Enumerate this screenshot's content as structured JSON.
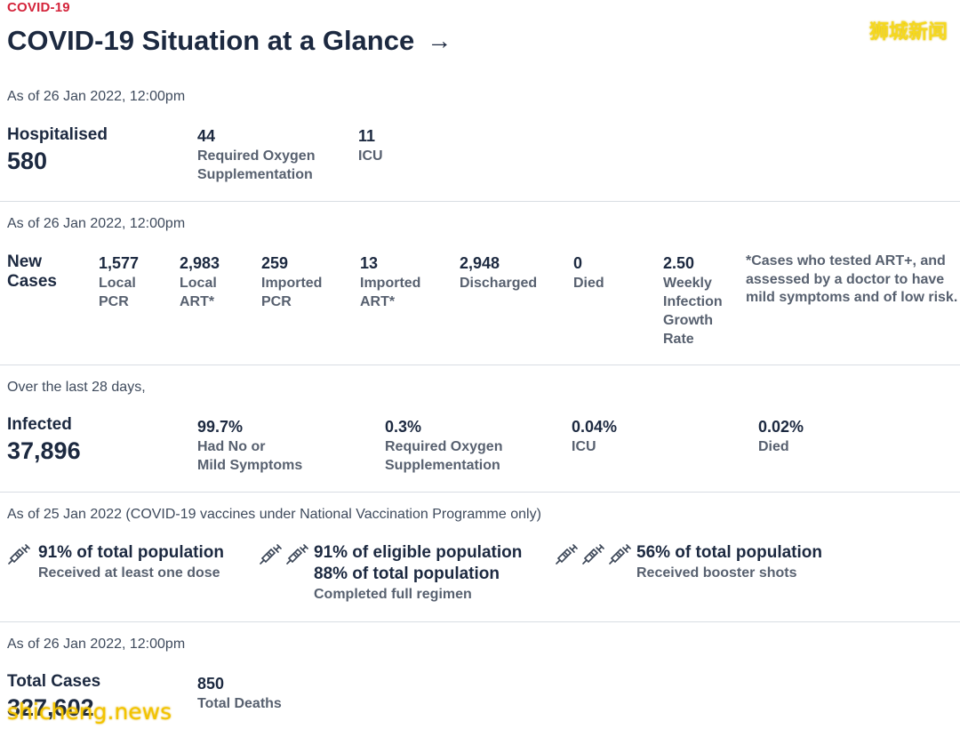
{
  "eyebrow": "COVID-19",
  "title": "COVID-19 Situation at a Glance",
  "title_arrow": "→",
  "watermark_top": "狮城新闻",
  "watermark_bottom": "shicheng.news",
  "hospital": {
    "asof": "As of 26 Jan 2022, 12:00pm",
    "label": "Hospitalised",
    "value": "580",
    "oxygen_value": "44",
    "oxygen_label_1": "Required Oxygen",
    "oxygen_label_2": "Supplementation",
    "icu_value": "11",
    "icu_label": "ICU"
  },
  "new_cases": {
    "asof": "As of 26 Jan 2022, 12:00pm",
    "label_1": "New",
    "label_2": "Cases",
    "items": [
      {
        "value": "1,577",
        "label_1": "Local",
        "label_2": "PCR"
      },
      {
        "value": "2,983",
        "label_1": "Local",
        "label_2": "ART*"
      },
      {
        "value": "259",
        "label_1": "Imported",
        "label_2": "PCR"
      },
      {
        "value": "13",
        "label_1": "Imported",
        "label_2": "ART*"
      },
      {
        "value": "2,948",
        "label_1": "Discharged"
      },
      {
        "value": "0",
        "label_1": "Died"
      },
      {
        "value": "2.50",
        "label_1": "Weekly",
        "label_2": "Infection",
        "label_3": "Growth",
        "label_4": "Rate"
      }
    ],
    "note_1": "*Cases who tested ART+, and",
    "note_2": "assessed by a doctor to have",
    "note_3": "mild symptoms and of low risk."
  },
  "infected": {
    "asof": "Over the last 28 days,",
    "label": "Infected",
    "value": "37,896",
    "items": [
      {
        "value": "99.7%",
        "label_1": "Had No or",
        "label_2": "Mild Symptoms"
      },
      {
        "value": "0.3%",
        "label_1": "Required Oxygen",
        "label_2": "Supplementation"
      },
      {
        "value": "0.04%",
        "label_1": "ICU"
      },
      {
        "value": "0.02%",
        "label_1": "Died"
      }
    ]
  },
  "vaccination": {
    "asof": "As of 25 Jan 2022 (COVID-19 vaccines under National Vaccination Programme only)",
    "icon": "syringe-icon",
    "items": [
      {
        "head_1": "91% of total population",
        "sub": "Received at least one dose",
        "syringes": 1
      },
      {
        "head_1": "91% of eligible population",
        "head_2": "88% of total population",
        "sub": "Completed full regimen",
        "syringes": 2
      },
      {
        "head_1": "56% of total population",
        "sub": "Received booster shots",
        "syringes": 3
      }
    ]
  },
  "total": {
    "asof": "As of 26 Jan 2022, 12:00pm",
    "label": "Total Cases",
    "value": "327,602",
    "deaths_value": "850",
    "deaths_label": "Total Deaths"
  }
}
